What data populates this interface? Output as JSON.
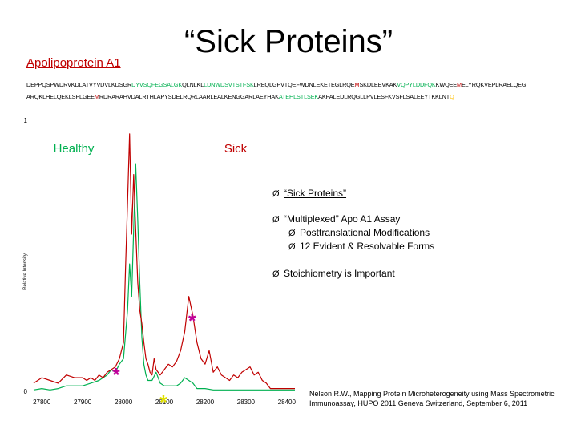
{
  "title": "“Sick Proteins”",
  "subtitle": "Apolipoprotein A1",
  "sequence": {
    "line1": [
      {
        "t": "DEPPQSPWDRVKDLATVYVDVLKDSGR",
        "c": "#000000"
      },
      {
        "t": "DYVSQFEGSALGK",
        "c": "#00b050"
      },
      {
        "t": "QLNLKL",
        "c": "#000000"
      },
      {
        "t": "LDNWDSVTSTFSK",
        "c": "#00b050"
      },
      {
        "t": "LREQLGPVTQEFWDNLEKETEGLRQE",
        "c": "#000000"
      },
      {
        "t": "M",
        "c": "#c00000"
      },
      {
        "t": "SKDLEEVKAK",
        "c": "#000000"
      },
      {
        "t": "VQPYLDDFQK",
        "c": "#00b050"
      },
      {
        "t": "KWQEE",
        "c": "#000000"
      },
      {
        "t": "M",
        "c": "#c00000"
      },
      {
        "t": "ELYRQKVEPLRAELQEG",
        "c": "#000000"
      }
    ],
    "line2": [
      {
        "t": "ARQKLHELQEKLSPLGEE",
        "c": "#000000"
      },
      {
        "t": "M",
        "c": "#c00000"
      },
      {
        "t": "RDRARAHVDALRTHLAPYSDELRQRLAARLEALKENGGARLAEYHAK",
        "c": "#000000"
      },
      {
        "t": "ATEHLSTLSEK",
        "c": "#00b050"
      },
      {
        "t": "AKPALEDLRQGLLPVLESFKVSFLSALEEYTKKLNT",
        "c": "#000000"
      },
      {
        "t": "Q",
        "c": "#ffc000"
      }
    ]
  },
  "bullets": [
    {
      "text": "“Sick Proteins”",
      "underline": true,
      "level": 0
    },
    {
      "text": "“Multiplexed” Apo A1 Assay",
      "underline": false,
      "level": 0
    },
    {
      "text": "Posttranslational Modifications",
      "underline": false,
      "level": 1
    },
    {
      "text": "12 Evident & Resolvable Forms",
      "underline": false,
      "level": 1
    },
    {
      "text": "Stoichiometry is Important",
      "underline": false,
      "level": 0
    }
  ],
  "bullet_symbol": "Ø",
  "asterisk": "*",
  "citation": {
    "line1": "Nelson R.W., Mapping Protein Microheterogeneity using Mass Spectrometric",
    "line2": "Immunoassay, HUPO 2011 Geneva Switzerland, September 6, 2011"
  },
  "chart_data": {
    "type": "line",
    "title": "",
    "xlabel": "",
    "ylabel": "Relative Intensity",
    "xlim": [
      27780,
      28420
    ],
    "ylim": [
      0,
      1
    ],
    "xticks": [
      27800,
      27900,
      28000,
      28100,
      28200,
      28300,
      28400
    ],
    "yticks": [
      0,
      1
    ],
    "grid": false,
    "legend_position": "top",
    "series": [
      {
        "name": "Healthy",
        "color": "#00b050",
        "x": [
          27780,
          27800,
          27820,
          27840,
          27860,
          27880,
          27900,
          27920,
          27940,
          27960,
          27970,
          27980,
          27990,
          28000,
          28010,
          28015,
          28020,
          28025,
          28030,
          28035,
          28040,
          28045,
          28050,
          28055,
          28060,
          28070,
          28080,
          28090,
          28100,
          28110,
          28120,
          28130,
          28140,
          28150,
          28160,
          28170,
          28180,
          28190,
          28200,
          28220,
          28240,
          28260,
          28280,
          28300,
          28320,
          28340,
          28360,
          28380,
          28400,
          28420
        ],
        "y": [
          0.005,
          0.01,
          0.005,
          0.01,
          0.02,
          0.02,
          0.02,
          0.03,
          0.04,
          0.06,
          0.08,
          0.07,
          0.1,
          0.12,
          0.3,
          0.47,
          0.35,
          0.6,
          0.84,
          0.63,
          0.4,
          0.2,
          0.1,
          0.06,
          0.04,
          0.04,
          0.07,
          0.03,
          0.02,
          0.02,
          0.02,
          0.02,
          0.03,
          0.05,
          0.04,
          0.03,
          0.01,
          0.01,
          0.01,
          0.005,
          0.005,
          0.005,
          0.005,
          0.005,
          0.005,
          0.005,
          0.005,
          0.005,
          0.005,
          0.005
        ]
      },
      {
        "name": "Sick",
        "color": "#c00000",
        "x": [
          27780,
          27800,
          27820,
          27840,
          27860,
          27880,
          27900,
          27910,
          27920,
          27930,
          27940,
          27950,
          27960,
          27970,
          27980,
          27990,
          28000,
          28005,
          28010,
          28015,
          28020,
          28025,
          28030,
          28035,
          28040,
          28045,
          28050,
          28055,
          28060,
          28065,
          28070,
          28075,
          28080,
          28090,
          28100,
          28110,
          28120,
          28130,
          28140,
          28150,
          28160,
          28170,
          28180,
          28190,
          28200,
          28210,
          28220,
          28230,
          28240,
          28250,
          28260,
          28270,
          28280,
          28290,
          28300,
          28310,
          28320,
          28330,
          28340,
          28350,
          28360,
          28380,
          28400,
          28420
        ],
        "y": [
          0.03,
          0.05,
          0.04,
          0.03,
          0.06,
          0.05,
          0.05,
          0.04,
          0.05,
          0.04,
          0.06,
          0.05,
          0.07,
          0.08,
          0.09,
          0.12,
          0.18,
          0.45,
          0.7,
          0.95,
          0.58,
          0.8,
          0.6,
          0.4,
          0.3,
          0.25,
          0.18,
          0.12,
          0.1,
          0.07,
          0.06,
          0.12,
          0.08,
          0.06,
          0.08,
          0.1,
          0.09,
          0.11,
          0.15,
          0.22,
          0.35,
          0.28,
          0.18,
          0.12,
          0.1,
          0.15,
          0.07,
          0.09,
          0.06,
          0.05,
          0.04,
          0.06,
          0.05,
          0.07,
          0.08,
          0.09,
          0.06,
          0.07,
          0.04,
          0.03,
          0.01,
          0.01,
          0.01,
          0.01
        ]
      }
    ],
    "annotations": [
      {
        "text": "*",
        "x": 27982,
        "y": 0.06,
        "color": "#c0009a"
      },
      {
        "text": "*",
        "x": 28098,
        "y": -0.04,
        "color": "#e0e000"
      },
      {
        "text": "*",
        "x": 28168,
        "y": 0.26,
        "color": "#c0009a"
      }
    ]
  }
}
